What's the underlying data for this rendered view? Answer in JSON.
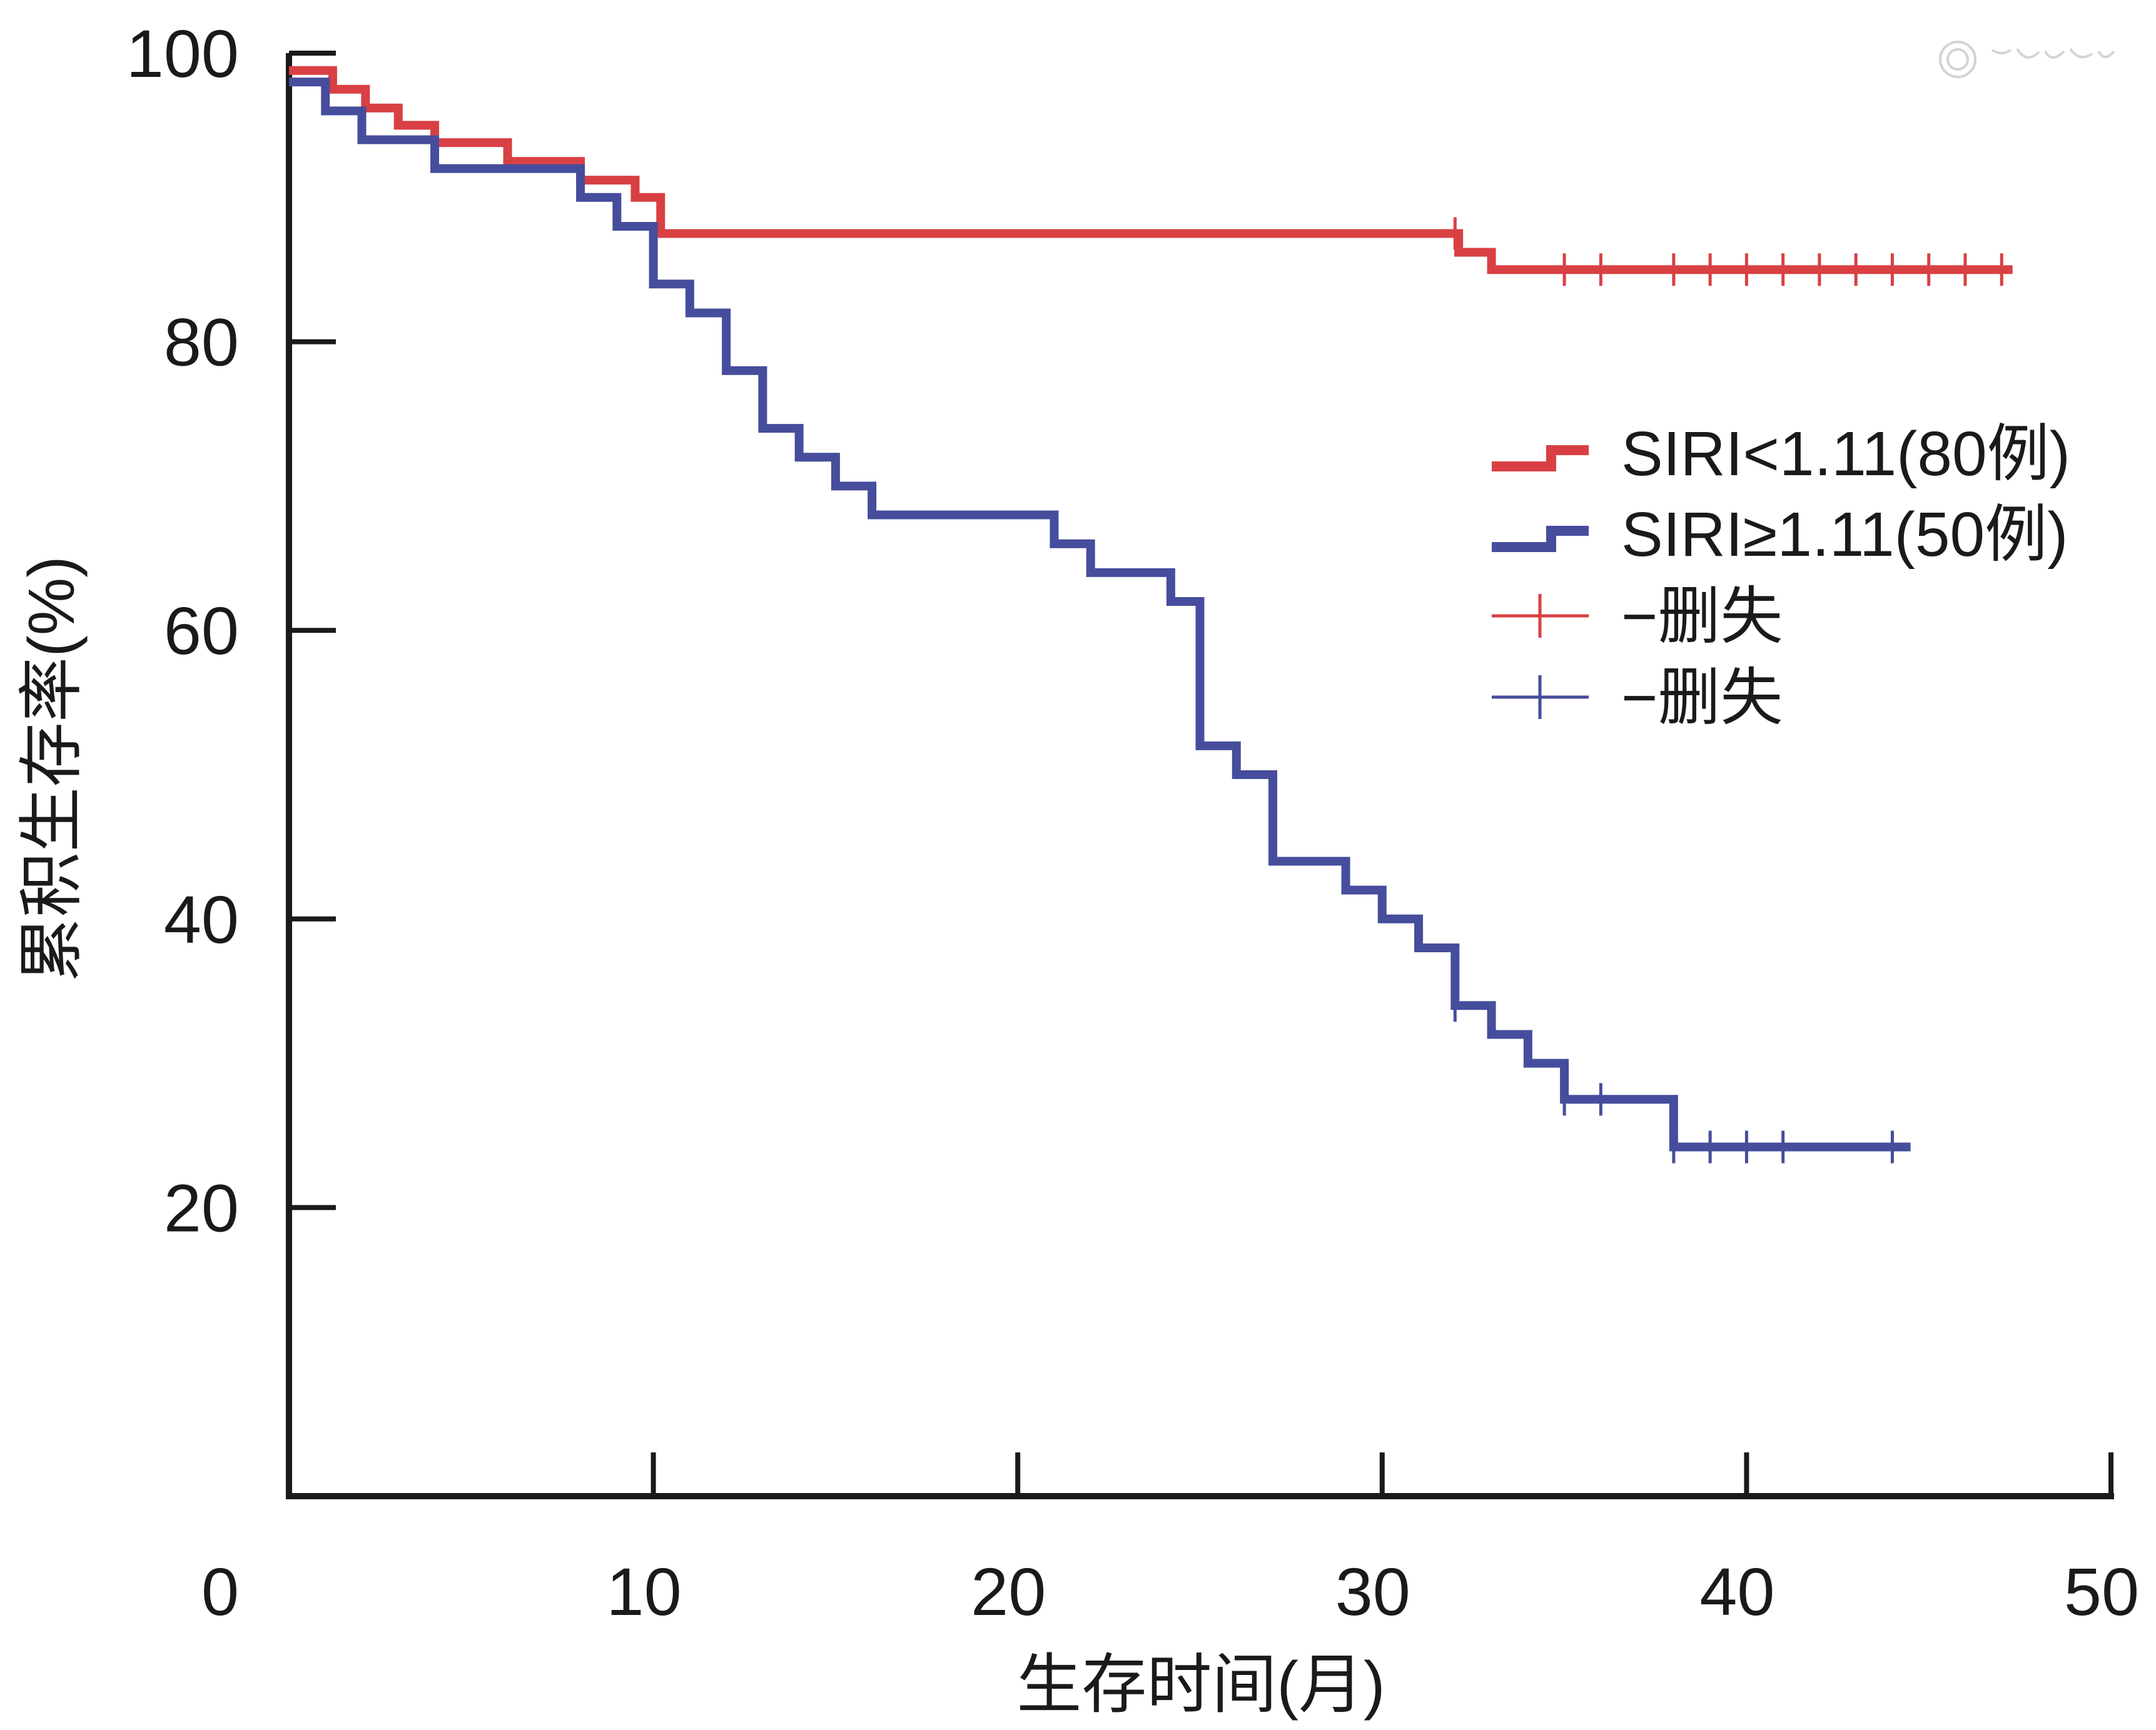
{
  "chart_data": {
    "type": "line",
    "step": true,
    "xlabel": "生存时间(月)",
    "ylabel": "累积生存率(%)",
    "xlim": [
      0,
      50
    ],
    "ylim": [
      0,
      100
    ],
    "x_ticks": [
      0,
      10,
      20,
      30,
      40,
      50
    ],
    "y_ticks": [
      20,
      40,
      60,
      80,
      100
    ],
    "x_tick_labels": [
      "0",
      "10",
      "20",
      "30",
      "40",
      "50"
    ],
    "y_tick_labels": [
      "20",
      "40",
      "60",
      "80",
      "100"
    ],
    "grid": false,
    "legend_position": "right",
    "series": [
      {
        "name": "SIRI<1.11(80例)",
        "color": "#d94043",
        "points": [
          [
            0,
            98.8
          ],
          [
            1.2,
            97.5
          ],
          [
            2.1,
            96.2
          ],
          [
            3,
            95
          ],
          [
            4,
            93.8
          ],
          [
            6,
            92.5
          ],
          [
            8,
            91.2
          ],
          [
            9.5,
            90
          ],
          [
            10.2,
            87.5
          ],
          [
            32,
            87.5
          ],
          [
            32.1,
            86.2
          ],
          [
            33,
            85
          ],
          [
            47.3,
            85
          ]
        ],
        "censored": [
          32,
          35,
          36,
          38,
          39,
          40,
          41,
          42,
          43,
          44,
          45,
          46,
          47
        ]
      },
      {
        "name": "SIRI≥1.11(50例)",
        "color": "#464d9c",
        "points": [
          [
            0,
            98
          ],
          [
            1,
            96
          ],
          [
            2,
            94
          ],
          [
            4,
            92
          ],
          [
            8,
            90
          ],
          [
            9,
            88
          ],
          [
            10,
            84
          ],
          [
            11,
            82
          ],
          [
            12,
            78
          ],
          [
            13,
            74
          ],
          [
            14,
            72
          ],
          [
            15,
            70
          ],
          [
            16,
            68
          ],
          [
            21,
            66
          ],
          [
            22,
            64
          ],
          [
            24.2,
            62
          ],
          [
            25,
            52
          ],
          [
            26,
            50
          ],
          [
            27,
            44
          ],
          [
            29,
            42
          ],
          [
            30,
            40
          ],
          [
            31,
            38
          ],
          [
            32,
            34
          ],
          [
            33,
            32
          ],
          [
            34,
            30
          ],
          [
            35,
            27.5
          ],
          [
            38,
            24.2
          ],
          [
            44.5,
            24.2
          ]
        ],
        "censored": [
          32,
          35,
          36,
          38,
          39,
          40,
          41,
          44
        ]
      }
    ],
    "legend": [
      {
        "label": "SIRI<1.11(80例)",
        "color": "#d94043",
        "style": "step"
      },
      {
        "label": "SIRI≥1.11(50例)",
        "color": "#464d9c",
        "style": "step"
      },
      {
        "label": "−删失",
        "color": "#d94043",
        "style": "censor"
      },
      {
        "label": "−删失",
        "color": "#464d9c",
        "style": "censor"
      }
    ]
  }
}
